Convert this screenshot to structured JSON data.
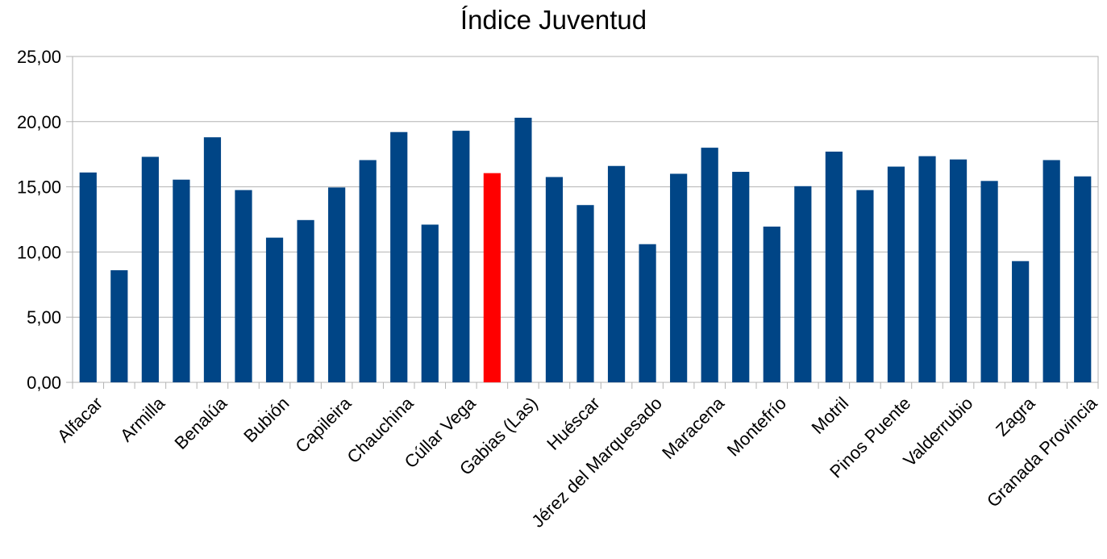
{
  "chart_data": {
    "type": "bar",
    "title": "Índice Juventud",
    "categories": [
      "Alfacar",
      "",
      "Armilla",
      "",
      "Benalúa",
      "",
      "Bubión",
      "",
      "Capileira",
      "",
      "Chauchina",
      "",
      "Cúllar Vega",
      "",
      "Gabias (Las)",
      "",
      "Huéscar",
      "",
      "Jérez del Marquesado",
      "",
      "Maracena",
      "",
      "Montefrío",
      "",
      "Motril",
      "",
      "Pinos Puente",
      "",
      "Valderrubio",
      "",
      "Zagra",
      "",
      "Granada Provincia"
    ],
    "values": [
      16.1,
      8.6,
      17.3,
      15.55,
      18.8,
      14.75,
      11.1,
      12.45,
      14.95,
      17.05,
      19.2,
      12.1,
      19.3,
      16.05,
      20.3,
      15.75,
      13.6,
      16.6,
      10.6,
      16.0,
      18.0,
      16.15,
      11.95,
      15.05,
      17.7,
      14.75,
      16.55,
      17.35,
      17.1,
      15.45,
      9.3,
      17.05,
      15.8
    ],
    "ylim": [
      0,
      25
    ],
    "yticks": [
      "0,00",
      "5,00",
      "10,00",
      "15,00",
      "20,00",
      "25,00"
    ],
    "grid": true,
    "legend": "none",
    "bar_color": "#004586",
    "highlight_color": "#ff0000",
    "highlight_index": 13
  }
}
